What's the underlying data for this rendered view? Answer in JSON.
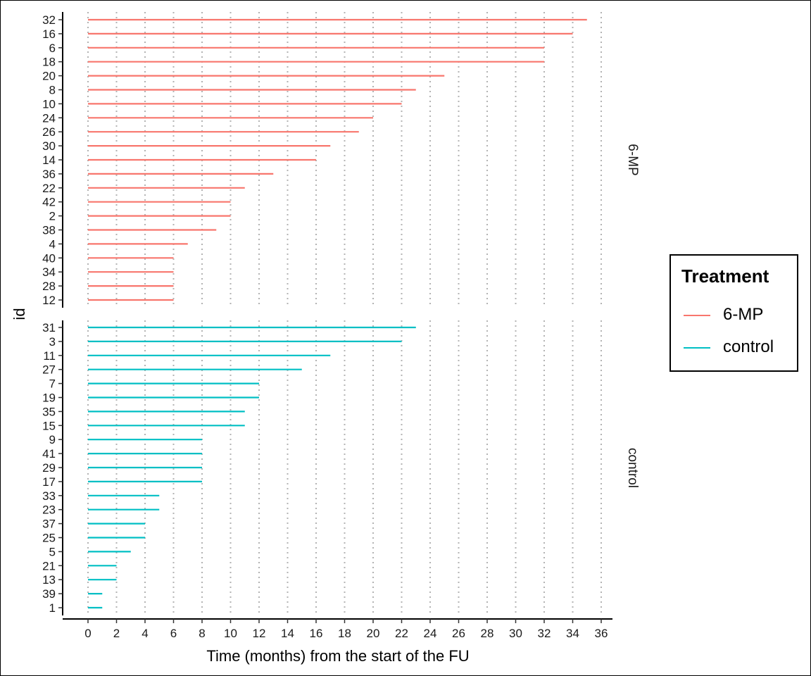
{
  "chart_data": {
    "type": "bar",
    "orientation": "horizontal",
    "xlabel": "Time (months) from the start of the FU",
    "ylabel": "id",
    "x_ticks": [
      0,
      2,
      4,
      6,
      8,
      10,
      12,
      14,
      16,
      18,
      20,
      22,
      24,
      26,
      28,
      30,
      32,
      34,
      36
    ],
    "xlim": [
      0,
      36
    ],
    "grid": "vertical dotted",
    "legend": {
      "title": "Treatment",
      "placement": "right",
      "entries": [
        {
          "name": "6-MP",
          "color": "#F8766D"
        },
        {
          "name": "control",
          "color": "#00BFC4"
        }
      ]
    },
    "panels": [
      {
        "strip": "6-MP",
        "color": "#F8766D",
        "ids": [
          "32",
          "16",
          "6",
          "18",
          "20",
          "8",
          "10",
          "24",
          "26",
          "30",
          "14",
          "36",
          "22",
          "42",
          "2",
          "38",
          "4",
          "40",
          "34",
          "28",
          "12"
        ],
        "values": [
          35,
          34,
          32,
          32,
          25,
          23,
          22,
          20,
          19,
          17,
          16,
          13,
          11,
          10,
          10,
          9,
          7,
          6,
          6,
          6,
          6
        ]
      },
      {
        "strip": "control",
        "color": "#00BFC4",
        "ids": [
          "31",
          "3",
          "11",
          "27",
          "7",
          "19",
          "35",
          "15",
          "9",
          "41",
          "29",
          "17",
          "33",
          "23",
          "37",
          "25",
          "5",
          "21",
          "13",
          "39",
          "1"
        ],
        "values": [
          23,
          22,
          17,
          15,
          12,
          12,
          11,
          11,
          8,
          8,
          8,
          8,
          5,
          5,
          4,
          4,
          3,
          2,
          2,
          1,
          1
        ]
      }
    ]
  }
}
